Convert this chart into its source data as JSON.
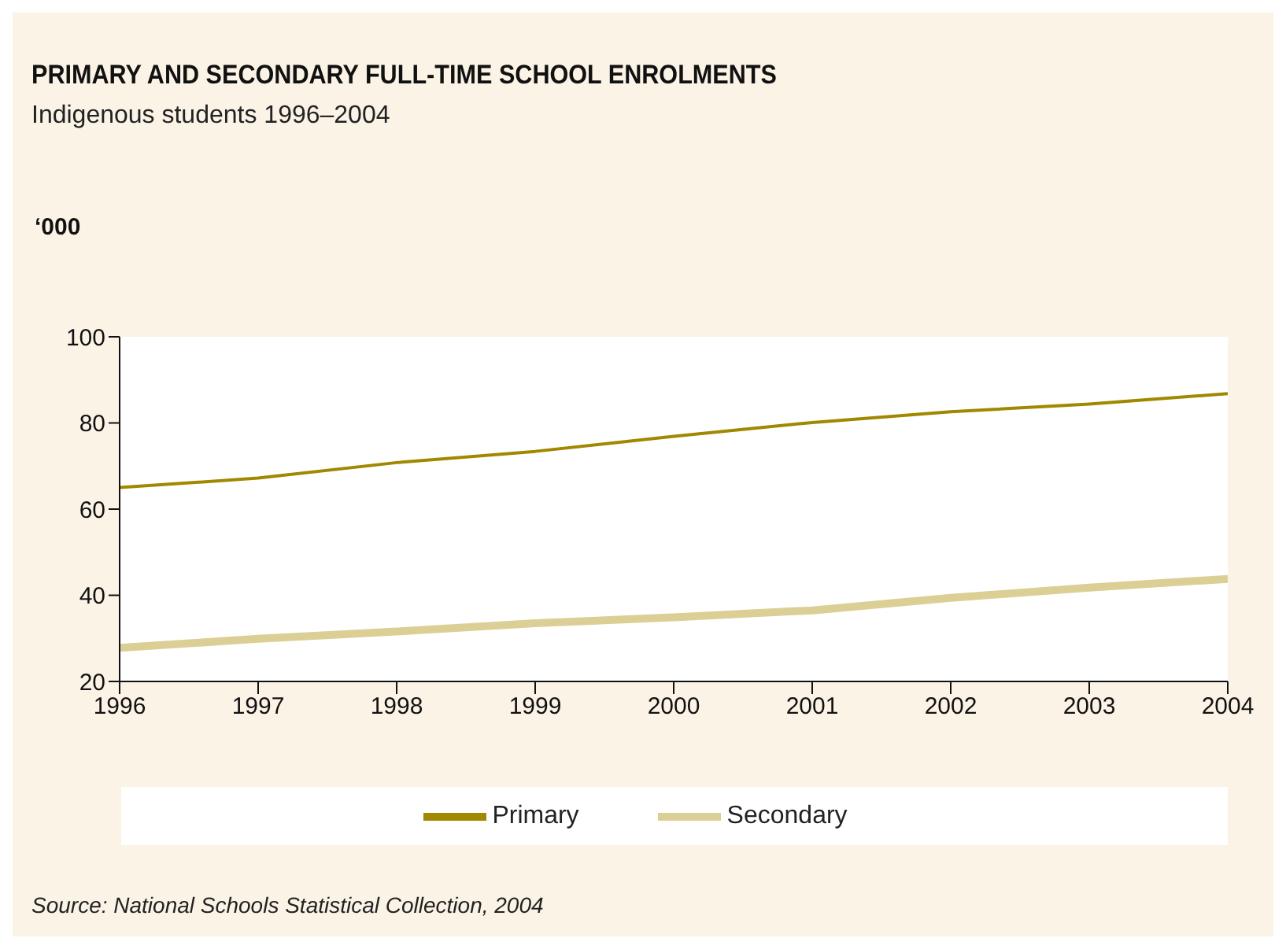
{
  "chart_data": {
    "type": "line",
    "title": "PRIMARY AND SECONDARY FULL-TIME SCHOOL ENROLMENTS",
    "subtitle": "Indigenous students 1996–2004",
    "ylabel": "‘000",
    "annotations": [
      "Source: National Schools Statistical Collection, 2004"
    ],
    "x": [
      1996,
      1997,
      1998,
      1999,
      2000,
      2001,
      2002,
      2003,
      2004
    ],
    "series": [
      {
        "name": "Primary",
        "color": "#a08800",
        "values": [
          65,
          67.2,
          70.8,
          73.4,
          76.9,
          80.1,
          82.6,
          84.4,
          86.8
        ]
      },
      {
        "name": "Secondary",
        "color": "#dccf96",
        "values": [
          27.8,
          29.9,
          31.6,
          33.5,
          34.9,
          36.5,
          39.4,
          41.8,
          43.8
        ]
      }
    ],
    "xlim": [
      1996,
      2004
    ],
    "xticks": [
      1996,
      1997,
      1998,
      1999,
      2000,
      2001,
      2002,
      2003,
      2004
    ],
    "ylim": [
      20,
      100
    ],
    "yticks": [
      20,
      40,
      60,
      80,
      100
    ],
    "legend": "bottom",
    "marker": "none",
    "line_style": "solid"
  }
}
